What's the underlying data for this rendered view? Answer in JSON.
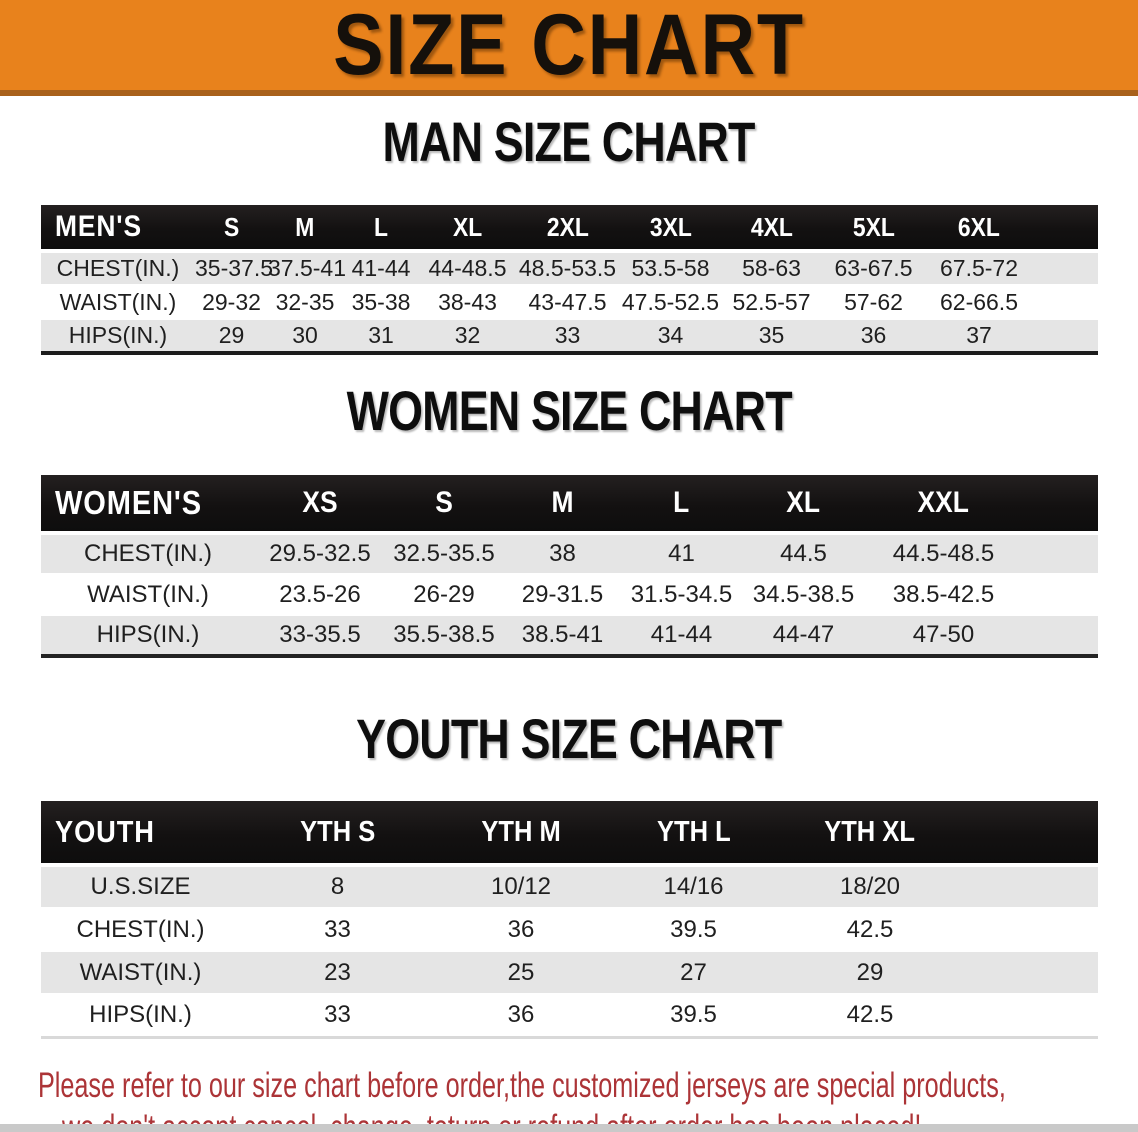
{
  "banner": {
    "title": "SIZE CHART"
  },
  "sections": [
    {
      "heading": "MAN SIZE CHART",
      "corner_label": "MEN'S",
      "columns": [
        "S",
        "M",
        "L",
        "XL",
        "2XL",
        "3XL",
        "4XL",
        "5XL",
        "6XL"
      ],
      "rows": [
        {
          "label": "CHEST(IN.)",
          "values": [
            "35-37.5",
            "37.5-41",
            "41-44",
            "44-48.5",
            "48.5-53.5",
            "53.5-58",
            "58-63",
            "63-67.5",
            "67.5-72"
          ]
        },
        {
          "label": "WAIST(IN.)",
          "values": [
            "29-32",
            "32-35",
            "35-38",
            "38-43",
            "43-47.5",
            "47.5-52.5",
            "52.5-57",
            "57-62",
            "62-66.5"
          ]
        },
        {
          "label": "HIPS(IN.)",
          "values": [
            "29",
            "30",
            "31",
            "32",
            "33",
            "34",
            "35",
            "36",
            "37"
          ]
        }
      ]
    },
    {
      "heading": "WOMEN SIZE CHART",
      "corner_label": "WOMEN'S",
      "columns": [
        "XS",
        "S",
        "M",
        "L",
        "XL",
        "XXL"
      ],
      "rows": [
        {
          "label": "CHEST(IN.)",
          "values": [
            "29.5-32.5",
            "32.5-35.5",
            "38",
            "41",
            "44.5",
            "44.5-48.5"
          ]
        },
        {
          "label": "WAIST(IN.)",
          "values": [
            "23.5-26",
            "26-29",
            "29-31.5",
            "31.5-34.5",
            "34.5-38.5",
            "38.5-42.5"
          ]
        },
        {
          "label": "HIPS(IN.)",
          "values": [
            "33-35.5",
            "35.5-38.5",
            "38.5-41",
            "41-44",
            "44-47",
            "47-50"
          ]
        }
      ]
    },
    {
      "heading": "YOUTH SIZE CHART",
      "corner_label": "YOUTH",
      "columns": [
        "YTH S",
        "YTH M",
        "YTH L",
        "YTH XL"
      ],
      "rows": [
        {
          "label": "U.S.SIZE",
          "values": [
            "8",
            "10/12",
            "14/16",
            "18/20"
          ]
        },
        {
          "label": "CHEST(IN.)",
          "values": [
            "33",
            "36",
            "39.5",
            "42.5"
          ]
        },
        {
          "label": "WAIST(IN.)",
          "values": [
            "23",
            "25",
            "27",
            "29"
          ]
        },
        {
          "label": "HIPS(IN.)",
          "values": [
            "33",
            "36",
            "39.5",
            "42.5"
          ]
        }
      ]
    }
  ],
  "disclaimer": {
    "line1": "Please refer to our size chart before order,the customized jerseys are special products,",
    "line2": "we don't accept cancel, change, teturn or refund after order has been placed!"
  },
  "colors": {
    "banner_bg": "#E8821C",
    "banner_border": "#A9611B",
    "table_header_bg": "#141414",
    "row_stripe_gray": "#E5E5E5",
    "disclaimer_red": "#AC3437",
    "bottom_strip_gray": "#C9C9C9"
  }
}
